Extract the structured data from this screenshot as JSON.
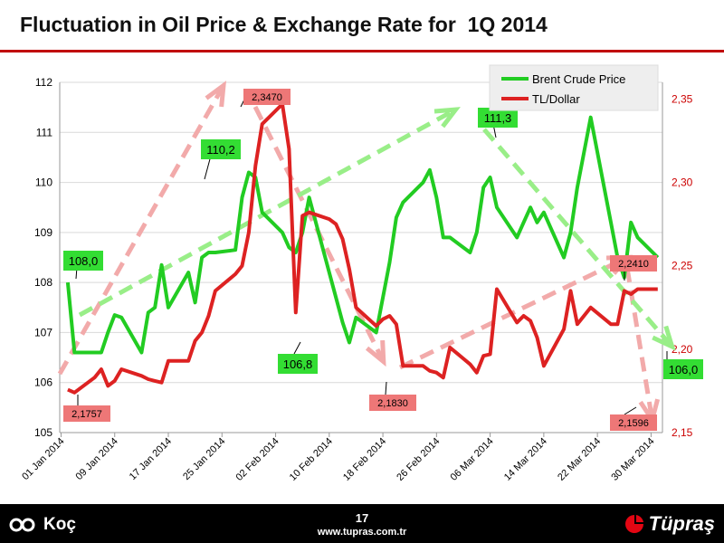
{
  "slide": {
    "title": "Fluctuation in Oil Price & Exchange Rate for  1Q 2014",
    "page_number": "17",
    "website": "www.tupras.com.tr",
    "logo_left": "Koç",
    "logo_right": "Tüpraş"
  },
  "colors": {
    "oil": "#22cc22",
    "fx": "#dd2222",
    "oil_label_bg": "#33dd33",
    "fx_label_bg": "#ee7777",
    "trend_green": "#99ee88",
    "trend_red": "#f2aaaa",
    "axis_red": "#cc0000",
    "title_rule": "#c00000"
  },
  "chart_data": {
    "type": "line",
    "x_start": "2014-01-02",
    "x_end": "2014-03-31",
    "x_tick_labels": [
      "01 Jan 2014",
      "09 Jan 2014",
      "17 Jan 2014",
      "25 Jan 2014",
      "02 Feb 2014",
      "10 Feb 2014",
      "18 Feb 2014",
      "26 Feb 2014",
      "06 Mar 2014",
      "14 Mar 2014",
      "22 Mar 2014",
      "30 Mar 2014"
    ],
    "x_tick_dates": [
      "2014-01-01",
      "2014-01-09",
      "2014-01-17",
      "2014-01-25",
      "2014-02-02",
      "2014-02-10",
      "2014-02-18",
      "2014-02-26",
      "2014-03-06",
      "2014-03-14",
      "2014-03-22",
      "2014-03-30"
    ],
    "y_left": {
      "min": 105,
      "max": 112,
      "ticks": [
        "105",
        "106",
        "107",
        "108",
        "109",
        "110",
        "111",
        "112"
      ]
    },
    "y_right": {
      "min": 2.15,
      "max": 2.36,
      "ticks": [
        "2,15",
        "2,20",
        "2,25",
        "2,30",
        "2,35"
      ]
    },
    "legend": {
      "position": "top-right",
      "entries": [
        "Brent Crude Price",
        "TL/Dollar"
      ]
    },
    "series": [
      {
        "name": "Brent Crude Price",
        "axis": "left",
        "points": [
          [
            "2014-01-02",
            108.0
          ],
          [
            "2014-01-03",
            106.6
          ],
          [
            "2014-01-06",
            106.6
          ],
          [
            "2014-01-07",
            106.6
          ],
          [
            "2014-01-08",
            107.0
          ],
          [
            "2014-01-09",
            107.35
          ],
          [
            "2014-01-10",
            107.3
          ],
          [
            "2014-01-13",
            106.6
          ],
          [
            "2014-01-14",
            107.4
          ],
          [
            "2014-01-15",
            107.5
          ],
          [
            "2014-01-16",
            108.35
          ],
          [
            "2014-01-17",
            107.5
          ],
          [
            "2014-01-20",
            108.2
          ],
          [
            "2014-01-21",
            107.6
          ],
          [
            "2014-01-22",
            108.5
          ],
          [
            "2014-01-23",
            108.6
          ],
          [
            "2014-01-24",
            108.6
          ],
          [
            "2014-01-27",
            108.65
          ],
          [
            "2014-01-28",
            109.7
          ],
          [
            "2014-01-29",
            110.2
          ],
          [
            "2014-01-30",
            110.1
          ],
          [
            "2014-01-31",
            109.4
          ],
          [
            "2014-02-03",
            109.0
          ],
          [
            "2014-02-04",
            108.7
          ],
          [
            "2014-02-05",
            108.6
          ],
          [
            "2014-02-06",
            109.0
          ],
          [
            "2014-02-07",
            109.7
          ],
          [
            "2014-02-10",
            108.2
          ],
          [
            "2014-02-11",
            107.7
          ],
          [
            "2014-02-12",
            107.2
          ],
          [
            "2014-02-13",
            106.8
          ],
          [
            "2014-02-14",
            107.3
          ],
          [
            "2014-02-17",
            107.0
          ],
          [
            "2014-02-18",
            107.7
          ],
          [
            "2014-02-19",
            108.4
          ],
          [
            "2014-02-20",
            109.3
          ],
          [
            "2014-02-21",
            109.6
          ],
          [
            "2014-02-24",
            110.0
          ],
          [
            "2014-02-25",
            110.25
          ],
          [
            "2014-02-26",
            109.7
          ],
          [
            "2014-02-27",
            108.9
          ],
          [
            "2014-02-28",
            108.9
          ],
          [
            "2014-03-03",
            108.6
          ],
          [
            "2014-03-04",
            109.0
          ],
          [
            "2014-03-05",
            109.9
          ],
          [
            "2014-03-06",
            110.1
          ],
          [
            "2014-03-07",
            109.5
          ],
          [
            "2014-03-10",
            108.9
          ],
          [
            "2014-03-11",
            109.2
          ],
          [
            "2014-03-12",
            109.5
          ],
          [
            "2014-03-13",
            109.2
          ],
          [
            "2014-03-14",
            109.4
          ],
          [
            "2014-03-17",
            108.5
          ],
          [
            "2014-03-18",
            109.0
          ],
          [
            "2014-03-19",
            109.9
          ],
          [
            "2014-03-20",
            110.6
          ],
          [
            "2014-03-21",
            111.3
          ],
          [
            "2014-03-24",
            109.2
          ],
          [
            "2014-03-25",
            108.5
          ],
          [
            "2014-03-26",
            108.1
          ],
          [
            "2014-03-27",
            109.2
          ],
          [
            "2014-03-28",
            108.9
          ],
          [
            "2014-03-31",
            108.5
          ]
        ]
      },
      {
        "name": "TL/Dollar",
        "axis": "right",
        "points": [
          [
            "2014-01-02",
            2.1757
          ],
          [
            "2014-01-03",
            2.174
          ],
          [
            "2014-01-06",
            2.183
          ],
          [
            "2014-01-07",
            2.188
          ],
          [
            "2014-01-08",
            2.178
          ],
          [
            "2014-01-09",
            2.181
          ],
          [
            "2014-01-10",
            2.188
          ],
          [
            "2014-01-13",
            2.184
          ],
          [
            "2014-01-14",
            2.182
          ],
          [
            "2014-01-15",
            2.181
          ],
          [
            "2014-01-16",
            2.18
          ],
          [
            "2014-01-17",
            2.193
          ],
          [
            "2014-01-20",
            2.193
          ],
          [
            "2014-01-21",
            2.205
          ],
          [
            "2014-01-22",
            2.21
          ],
          [
            "2014-01-23",
            2.22
          ],
          [
            "2014-01-24",
            2.235
          ],
          [
            "2014-01-27",
            2.245
          ],
          [
            "2014-01-28",
            2.25
          ],
          [
            "2014-01-29",
            2.27
          ],
          [
            "2014-01-30",
            2.31
          ],
          [
            "2014-01-31",
            2.335
          ],
          [
            "2014-02-03",
            2.347
          ],
          [
            "2014-02-04",
            2.32
          ],
          [
            "2014-02-05",
            2.222
          ],
          [
            "2014-02-06",
            2.28
          ],
          [
            "2014-02-07",
            2.282
          ],
          [
            "2014-02-10",
            2.278
          ],
          [
            "2014-02-11",
            2.275
          ],
          [
            "2014-02-12",
            2.266
          ],
          [
            "2014-02-13",
            2.248
          ],
          [
            "2014-02-14",
            2.225
          ],
          [
            "2014-02-17",
            2.214
          ],
          [
            "2014-02-18",
            2.218
          ],
          [
            "2014-02-19",
            2.22
          ],
          [
            "2014-02-20",
            2.215
          ],
          [
            "2014-02-21",
            2.19
          ],
          [
            "2014-02-24",
            2.19
          ],
          [
            "2014-02-25",
            2.187
          ],
          [
            "2014-02-26",
            2.186
          ],
          [
            "2014-02-27",
            2.183
          ],
          [
            "2014-02-28",
            2.201
          ],
          [
            "2014-03-03",
            2.191
          ],
          [
            "2014-03-04",
            2.186
          ],
          [
            "2014-03-05",
            2.196
          ],
          [
            "2014-03-06",
            2.197
          ],
          [
            "2014-03-07",
            2.236
          ],
          [
            "2014-03-10",
            2.216
          ],
          [
            "2014-03-11",
            2.22
          ],
          [
            "2014-03-12",
            2.217
          ],
          [
            "2014-03-13",
            2.207
          ],
          [
            "2014-03-14",
            2.19
          ],
          [
            "2014-03-17",
            2.212
          ],
          [
            "2014-03-18",
            2.235
          ],
          [
            "2014-03-19",
            2.215
          ],
          [
            "2014-03-20",
            2.22
          ],
          [
            "2014-03-21",
            2.225
          ],
          [
            "2014-03-24",
            2.215
          ],
          [
            "2014-03-25",
            2.215
          ],
          [
            "2014-03-26",
            2.235
          ],
          [
            "2014-03-27",
            2.233
          ],
          [
            "2014-03-28",
            2.236
          ],
          [
            "2014-03-31",
            2.236
          ]
        ]
      }
    ],
    "annotations": [
      {
        "text": "108,0",
        "series": "Brent Crude Price"
      },
      {
        "text": "110,2",
        "series": "Brent Crude Price"
      },
      {
        "text": "106,8",
        "series": "Brent Crude Price"
      },
      {
        "text": "111,3",
        "series": "Brent Crude Price"
      },
      {
        "text": "106,0",
        "series": "Brent Crude Price"
      },
      {
        "text": "2,1757",
        "series": "TL/Dollar"
      },
      {
        "text": "2,3470",
        "series": "TL/Dollar"
      },
      {
        "text": "2,1830",
        "series": "TL/Dollar"
      },
      {
        "text": "2,2410",
        "series": "TL/Dollar"
      },
      {
        "text": "2,1596",
        "series": "TL/Dollar"
      }
    ],
    "grid": "horizontal"
  }
}
